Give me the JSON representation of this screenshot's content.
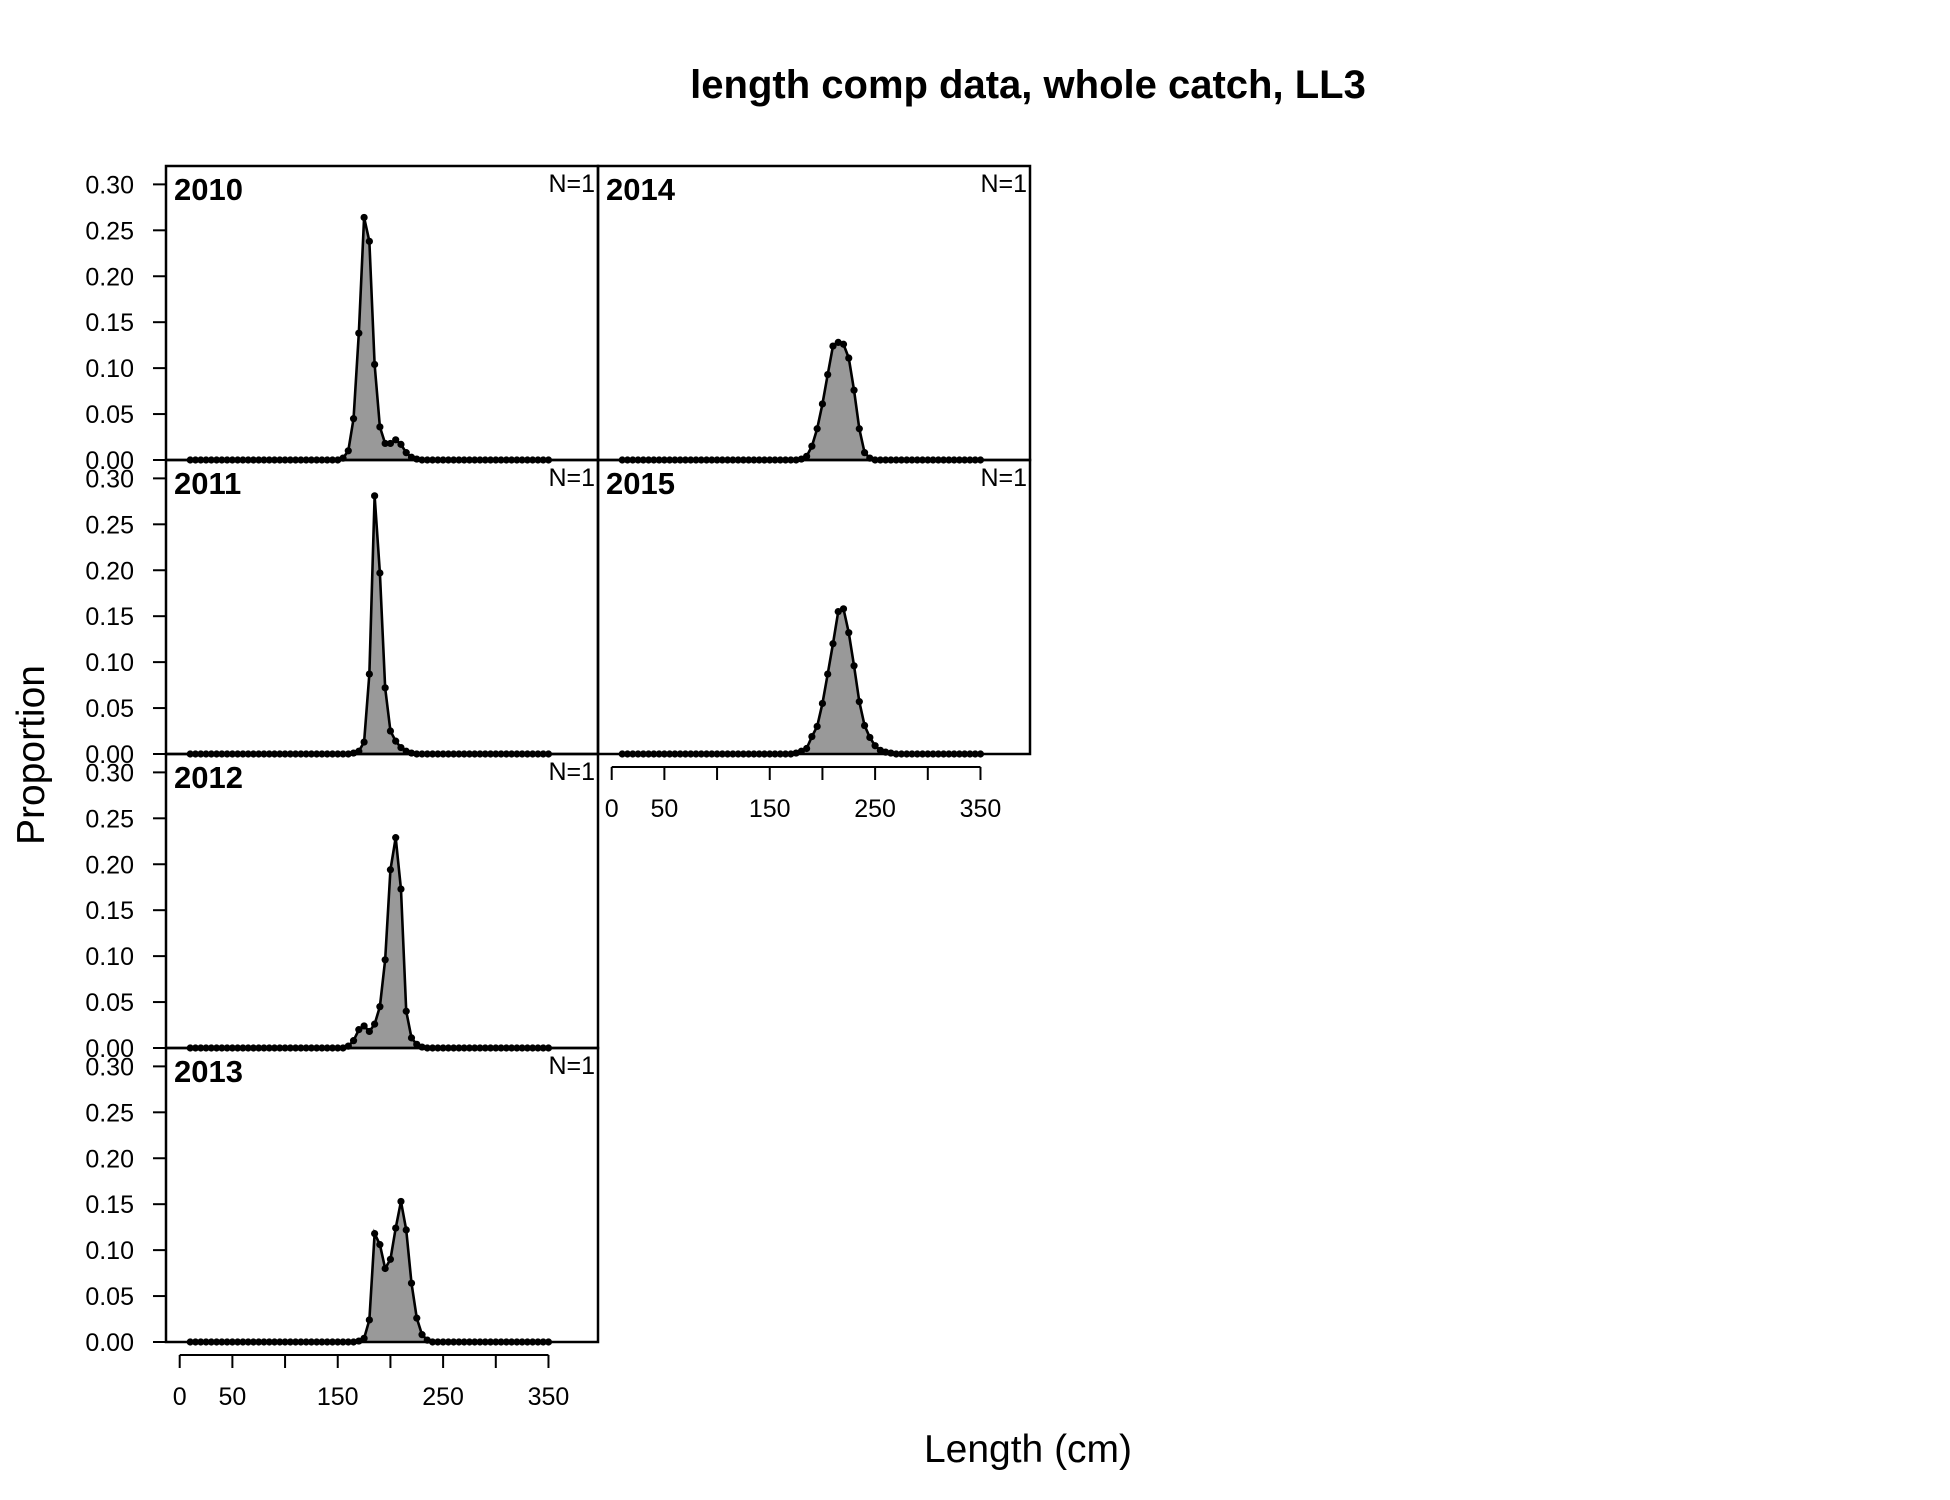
{
  "title": "length comp data, whole catch, LL3",
  "xlabel": "Length (cm)",
  "ylabel": "Proportion",
  "colors": {
    "fill": "#999999",
    "line": "#000000",
    "points": "#000000"
  },
  "chart_data": {
    "type": "area",
    "title": "length comp data, whole catch, LL3",
    "xlabel": "Length (cm)",
    "ylabel": "Proportion",
    "xlim": [
      -13,
      397
    ],
    "ylim": [
      0,
      0.32
    ],
    "x_ticks": [
      0,
      50,
      100,
      150,
      200,
      250,
      300,
      350
    ],
    "x_tick_labels": [
      "0",
      "50",
      "",
      "150",
      "",
      "250",
      "",
      "350"
    ],
    "y_ticks": [
      0,
      0.05,
      0.1,
      0.15,
      0.2,
      0.25,
      0.3
    ],
    "y_tick_labels": [
      "0.00",
      "0.05",
      "0.10",
      "0.15",
      "0.20",
      "0.25",
      "0.30"
    ],
    "x": [
      10,
      15,
      20,
      25,
      30,
      35,
      40,
      45,
      50,
      55,
      60,
      65,
      70,
      75,
      80,
      85,
      90,
      95,
      100,
      105,
      110,
      115,
      120,
      125,
      130,
      135,
      140,
      145,
      150,
      155,
      160,
      165,
      170,
      175,
      180,
      185,
      190,
      195,
      200,
      205,
      210,
      215,
      220,
      225,
      230,
      235,
      240,
      245,
      250,
      255,
      260,
      265,
      270,
      275,
      280,
      285,
      290,
      295,
      300,
      305,
      310,
      315,
      320,
      325,
      330,
      335,
      340,
      345,
      350
    ],
    "panels": [
      {
        "year": "2010",
        "n_label": "N=1",
        "values": [
          0,
          0,
          0,
          0,
          0,
          0,
          0,
          0,
          0,
          0,
          0,
          0,
          0,
          0,
          0,
          0,
          0,
          0,
          0,
          0,
          0,
          0,
          0,
          0,
          0,
          0,
          0,
          0,
          0,
          0.002,
          0.01,
          0.045,
          0.138,
          0.264,
          0.238,
          0.104,
          0.036,
          0.018,
          0.018,
          0.022,
          0.017,
          0.008,
          0.003,
          0.001,
          0,
          0,
          0,
          0,
          0,
          0,
          0,
          0,
          0,
          0,
          0,
          0,
          0,
          0,
          0,
          0,
          0,
          0,
          0,
          0,
          0,
          0,
          0,
          0,
          0
        ]
      },
      {
        "year": "2011",
        "n_label": "N=1",
        "values": [
          0,
          0,
          0,
          0,
          0,
          0,
          0,
          0,
          0,
          0,
          0,
          0,
          0,
          0,
          0,
          0,
          0,
          0,
          0,
          0,
          0,
          0,
          0,
          0,
          0,
          0,
          0,
          0,
          0,
          0,
          0,
          0.001,
          0.003,
          0.013,
          0.087,
          0.281,
          0.197,
          0.072,
          0.025,
          0.014,
          0.007,
          0.003,
          0.001,
          0,
          0,
          0,
          0,
          0,
          0,
          0,
          0,
          0,
          0,
          0,
          0,
          0,
          0,
          0,
          0,
          0,
          0,
          0,
          0,
          0,
          0,
          0,
          0,
          0,
          0
        ]
      },
      {
        "year": "2012",
        "n_label": "N=1",
        "values": [
          0,
          0,
          0,
          0,
          0,
          0,
          0,
          0,
          0,
          0,
          0,
          0,
          0,
          0,
          0,
          0,
          0,
          0,
          0,
          0,
          0,
          0,
          0,
          0,
          0,
          0,
          0,
          0,
          0,
          0,
          0.002,
          0.008,
          0.02,
          0.024,
          0.018,
          0.026,
          0.045,
          0.096,
          0.194,
          0.229,
          0.173,
          0.04,
          0.011,
          0.004,
          0.001,
          0,
          0,
          0,
          0,
          0,
          0,
          0,
          0,
          0,
          0,
          0,
          0,
          0,
          0,
          0,
          0,
          0,
          0,
          0,
          0,
          0,
          0,
          0,
          0
        ]
      },
      {
        "year": "2013",
        "n_label": "N=1",
        "values": [
          0,
          0,
          0,
          0,
          0,
          0,
          0,
          0,
          0,
          0,
          0,
          0,
          0,
          0,
          0,
          0,
          0,
          0,
          0,
          0,
          0,
          0,
          0,
          0,
          0,
          0,
          0,
          0,
          0,
          0,
          0,
          0,
          0.001,
          0.004,
          0.024,
          0.118,
          0.106,
          0.08,
          0.09,
          0.124,
          0.153,
          0.122,
          0.064,
          0.026,
          0.008,
          0.002,
          0,
          0,
          0,
          0,
          0,
          0,
          0,
          0,
          0,
          0,
          0,
          0,
          0,
          0,
          0,
          0,
          0,
          0,
          0,
          0,
          0,
          0,
          0
        ]
      },
      {
        "year": "2014",
        "n_label": "N=1",
        "values": [
          0,
          0,
          0,
          0,
          0,
          0,
          0,
          0,
          0,
          0,
          0,
          0,
          0,
          0,
          0,
          0,
          0,
          0,
          0,
          0,
          0,
          0,
          0,
          0,
          0,
          0,
          0,
          0,
          0,
          0,
          0,
          0,
          0,
          0,
          0.001,
          0.004,
          0.015,
          0.034,
          0.061,
          0.093,
          0.124,
          0.128,
          0.126,
          0.111,
          0.076,
          0.034,
          0.008,
          0.002,
          0,
          0,
          0,
          0,
          0,
          0,
          0,
          0,
          0,
          0,
          0,
          0,
          0,
          0,
          0,
          0,
          0,
          0,
          0,
          0,
          0
        ]
      },
      {
        "year": "2015",
        "n_label": "N=1",
        "values": [
          0,
          0,
          0,
          0,
          0,
          0,
          0,
          0,
          0,
          0,
          0,
          0,
          0,
          0,
          0,
          0,
          0,
          0,
          0,
          0,
          0,
          0,
          0,
          0,
          0,
          0,
          0,
          0,
          0,
          0,
          0,
          0,
          0,
          0.001,
          0.003,
          0.006,
          0.019,
          0.03,
          0.055,
          0.087,
          0.12,
          0.155,
          0.158,
          0.132,
          0.096,
          0.057,
          0.031,
          0.018,
          0.009,
          0.004,
          0.002,
          0.001,
          0,
          0,
          0,
          0,
          0,
          0,
          0,
          0,
          0,
          0,
          0,
          0,
          0,
          0,
          0,
          0,
          0
        ]
      }
    ]
  }
}
